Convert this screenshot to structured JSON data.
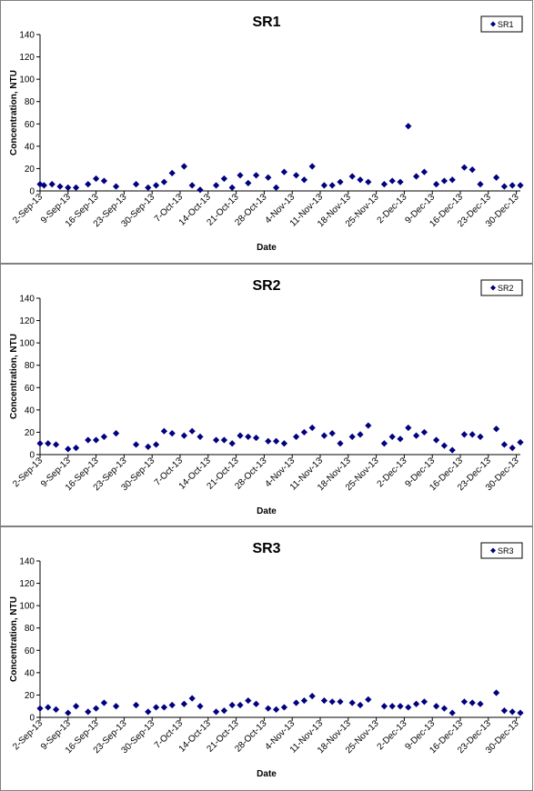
{
  "chart_data": [
    {
      "type": "scatter",
      "title": "SR1",
      "xlabel": "Date",
      "ylabel": "Concentration, NTU",
      "ylim": [
        0,
        140
      ],
      "yticks": [
        0,
        20,
        40,
        60,
        80,
        100,
        120,
        140
      ],
      "xlim": [
        "2013-09-02",
        "2013-12-31"
      ],
      "xticks": [
        "2-Sep-13",
        "9-Sep-13",
        "16-Sep-13",
        "23-Sep-13",
        "30-Sep-13",
        "7-Oct-13",
        "14-Oct-13",
        "21-Oct-13",
        "28-Oct-13",
        "4-Nov-13",
        "11-Nov-13",
        "18-Nov-13",
        "25-Nov-13",
        "2-Dec-13",
        "9-Dec-13",
        "16-Dec-13",
        "23-Dec-13",
        "30-Dec-13"
      ],
      "color": "#000080",
      "legend_position": "top-right",
      "series": [
        {
          "name": "SR1",
          "x": [
            "2013-09-02",
            "2013-09-03",
            "2013-09-05",
            "2013-09-07",
            "2013-09-09",
            "2013-09-11",
            "2013-09-14",
            "2013-09-16",
            "2013-09-18",
            "2013-09-21",
            "2013-09-26",
            "2013-09-29",
            "2013-10-01",
            "2013-10-03",
            "2013-10-05",
            "2013-10-08",
            "2013-10-10",
            "2013-10-12",
            "2013-10-16",
            "2013-10-18",
            "2013-10-20",
            "2013-10-22",
            "2013-10-24",
            "2013-10-26",
            "2013-10-29",
            "2013-10-31",
            "2013-11-02",
            "2013-11-05",
            "2013-11-07",
            "2013-11-09",
            "2013-11-12",
            "2013-11-14",
            "2013-11-16",
            "2013-11-19",
            "2013-11-21",
            "2013-11-23",
            "2013-11-27",
            "2013-11-29",
            "2013-12-01",
            "2013-12-03",
            "2013-12-05",
            "2013-12-07",
            "2013-12-10",
            "2013-12-12",
            "2013-12-14",
            "2013-12-17",
            "2013-12-19",
            "2013-12-21",
            "2013-12-25",
            "2013-12-27",
            "2013-12-29",
            "2013-12-31"
          ],
          "y": [
            6,
            5,
            6,
            4,
            3,
            3,
            6,
            11,
            9,
            4,
            6,
            3,
            5,
            8,
            16,
            22,
            5,
            1,
            5,
            11,
            3,
            14,
            7,
            14,
            12,
            3,
            17,
            14,
            10,
            22,
            5,
            5,
            8,
            13,
            10,
            8,
            6,
            9,
            8,
            58,
            13,
            17,
            6,
            9,
            10,
            21,
            19,
            6,
            12,
            4,
            5,
            5
          ]
        }
      ]
    },
    {
      "type": "scatter",
      "title": "SR2",
      "xlabel": "Date",
      "ylabel": "Concentration, NTU",
      "ylim": [
        0,
        140
      ],
      "yticks": [
        0,
        20,
        40,
        60,
        80,
        100,
        120,
        140
      ],
      "xlim": [
        "2013-09-02",
        "2013-12-31"
      ],
      "xticks": [
        "2-Sep-13",
        "9-Sep-13",
        "16-Sep-13",
        "23-Sep-13",
        "30-Sep-13",
        "7-Oct-13",
        "14-Oct-13",
        "21-Oct-13",
        "28-Oct-13",
        "4-Nov-13",
        "11-Nov-13",
        "18-Nov-13",
        "25-Nov-13",
        "2-Dec-13",
        "9-Dec-13",
        "16-Dec-13",
        "23-Dec-13",
        "30-Dec-13"
      ],
      "color": "#000080",
      "legend_position": "top-right",
      "series": [
        {
          "name": "SR2",
          "x": [
            "2013-09-02",
            "2013-09-04",
            "2013-09-06",
            "2013-09-09",
            "2013-09-11",
            "2013-09-14",
            "2013-09-16",
            "2013-09-18",
            "2013-09-21",
            "2013-09-26",
            "2013-09-29",
            "2013-10-01",
            "2013-10-03",
            "2013-10-05",
            "2013-10-08",
            "2013-10-10",
            "2013-10-12",
            "2013-10-16",
            "2013-10-18",
            "2013-10-20",
            "2013-10-22",
            "2013-10-24",
            "2013-10-26",
            "2013-10-29",
            "2013-10-31",
            "2013-11-02",
            "2013-11-05",
            "2013-11-07",
            "2013-11-09",
            "2013-11-12",
            "2013-11-14",
            "2013-11-16",
            "2013-11-19",
            "2013-11-21",
            "2013-11-23",
            "2013-11-27",
            "2013-11-29",
            "2013-12-01",
            "2013-12-03",
            "2013-12-05",
            "2013-12-07",
            "2013-12-10",
            "2013-12-12",
            "2013-12-14",
            "2013-12-17",
            "2013-12-19",
            "2013-12-21",
            "2013-12-25",
            "2013-12-27",
            "2013-12-29",
            "2013-12-31"
          ],
          "y": [
            10,
            10,
            9,
            5,
            6,
            13,
            13,
            16,
            19,
            9,
            7,
            9,
            21,
            19,
            17,
            21,
            16,
            13,
            13,
            10,
            17,
            16,
            15,
            12,
            12,
            10,
            16,
            20,
            24,
            17,
            19,
            10,
            16,
            18,
            26,
            10,
            16,
            14,
            24,
            17,
            20,
            13,
            8,
            4,
            18,
            18,
            16,
            23,
            9,
            6,
            11
          ]
        }
      ]
    },
    {
      "type": "scatter",
      "title": "SR3",
      "xlabel": "Date",
      "ylabel": "Concentration, NTU",
      "ylim": [
        0,
        140
      ],
      "yticks": [
        0,
        20,
        40,
        60,
        80,
        100,
        120,
        140
      ],
      "xlim": [
        "2013-09-02",
        "2013-12-31"
      ],
      "xticks": [
        "2-Sep-13",
        "9-Sep-13",
        "16-Sep-13",
        "23-Sep-13",
        "30-Sep-13",
        "7-Oct-13",
        "14-Oct-13",
        "21-Oct-13",
        "28-Oct-13",
        "4-Nov-13",
        "11-Nov-13",
        "18-Nov-13",
        "25-Nov-13",
        "2-Dec-13",
        "9-Dec-13",
        "16-Dec-13",
        "23-Dec-13",
        "30-Dec-13"
      ],
      "color": "#000080",
      "legend_position": "top-right",
      "series": [
        {
          "name": "SR3",
          "x": [
            "2013-09-02",
            "2013-09-04",
            "2013-09-06",
            "2013-09-09",
            "2013-09-11",
            "2013-09-14",
            "2013-09-16",
            "2013-09-18",
            "2013-09-21",
            "2013-09-26",
            "2013-09-29",
            "2013-10-01",
            "2013-10-03",
            "2013-10-05",
            "2013-10-08",
            "2013-10-10",
            "2013-10-12",
            "2013-10-16",
            "2013-10-18",
            "2013-10-20",
            "2013-10-22",
            "2013-10-24",
            "2013-10-26",
            "2013-10-29",
            "2013-10-31",
            "2013-11-02",
            "2013-11-05",
            "2013-11-07",
            "2013-11-09",
            "2013-11-12",
            "2013-11-14",
            "2013-11-16",
            "2013-11-19",
            "2013-11-21",
            "2013-11-23",
            "2013-11-27",
            "2013-11-29",
            "2013-12-01",
            "2013-12-03",
            "2013-12-05",
            "2013-12-07",
            "2013-12-10",
            "2013-12-12",
            "2013-12-14",
            "2013-12-17",
            "2013-12-19",
            "2013-12-21",
            "2013-12-25",
            "2013-12-27",
            "2013-12-29",
            "2013-12-31"
          ],
          "y": [
            8,
            9,
            7,
            4,
            10,
            5,
            8,
            13,
            10,
            11,
            5,
            9,
            9,
            11,
            12,
            17,
            10,
            5,
            6,
            11,
            11,
            15,
            12,
            8,
            7,
            9,
            13,
            15,
            19,
            15,
            14,
            14,
            13,
            11,
            16,
            10,
            10,
            10,
            9,
            12,
            14,
            10,
            8,
            4,
            14,
            13,
            12,
            22,
            6,
            5,
            4
          ]
        }
      ]
    }
  ]
}
